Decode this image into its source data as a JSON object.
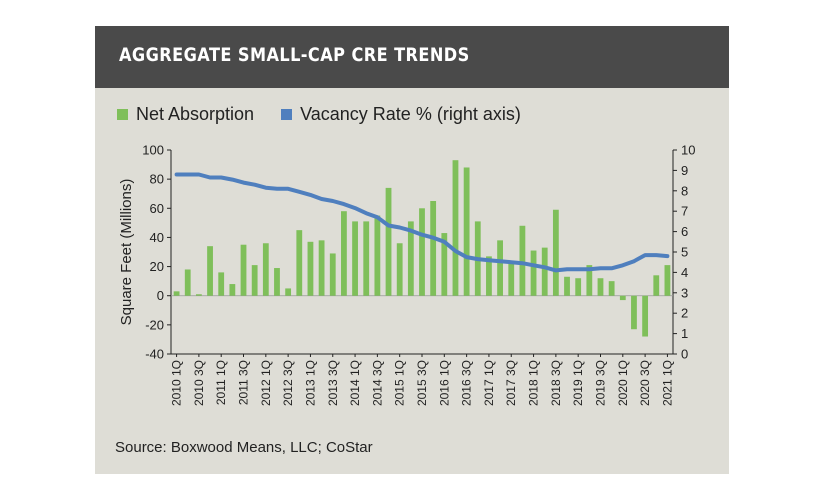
{
  "colors": {
    "header_bg": "#4a4a4a",
    "panel_bg": "#deddd6",
    "bar": "#7fbf5a",
    "line": "#4f7fbe"
  },
  "header": {
    "title": "AGGREGATE SMALL-CAP CRE TRENDS"
  },
  "source": "Source: Boxwood Means, LLC; CoStar",
  "chart_data": {
    "type": "bar",
    "title": "AGGREGATE SMALL-CAP CRE TRENDS",
    "ylabel": "Square Feet (Millions)",
    "ylim": [
      -40,
      100
    ],
    "yticks": [
      -40,
      -20,
      0,
      20,
      40,
      60,
      80,
      100
    ],
    "y2lim": [
      0,
      10
    ],
    "y2ticks": [
      0,
      1,
      2,
      3,
      4,
      5,
      6,
      7,
      8,
      9,
      10
    ],
    "grid": false,
    "legend_position": "top-left",
    "tick_labels": [
      "2010 1Q",
      "2010 3Q",
      "2011 1Q",
      "2011 3Q",
      "2012 1Q",
      "2012 3Q",
      "2013 1Q",
      "2013 3Q",
      "2014 1Q",
      "2014 3Q",
      "2015 1Q",
      "2015 3Q",
      "2016 1Q",
      "2016 3Q",
      "2017 1Q",
      "2017 3Q",
      "2018 1Q",
      "2018 3Q",
      "2019 1Q",
      "2019 3Q",
      "2020 1Q",
      "2020 3Q",
      "2021 1Q"
    ],
    "series": [
      {
        "name": "Net Absorption",
        "axis": "left",
        "type": "bar",
        "values": [
          3,
          18,
          1,
          34,
          16,
          8,
          35,
          21,
          36,
          19,
          5,
          45,
          37,
          38,
          29,
          58,
          51,
          51,
          55,
          74,
          36,
          51,
          60,
          65,
          43,
          93,
          88,
          51,
          27,
          38,
          23,
          48,
          31,
          33,
          59,
          13,
          12,
          21,
          12,
          10,
          -3,
          -23,
          -28,
          14,
          21
        ]
      },
      {
        "name": "Vacancy Rate % (right axis)",
        "axis": "right",
        "type": "line",
        "values": [
          8.8,
          8.8,
          8.8,
          8.65,
          8.65,
          8.55,
          8.4,
          8.3,
          8.15,
          8.1,
          8.1,
          7.95,
          7.8,
          7.6,
          7.5,
          7.35,
          7.15,
          6.9,
          6.7,
          6.3,
          6.2,
          6.05,
          5.85,
          5.7,
          5.5,
          5.05,
          4.75,
          4.65,
          4.6,
          4.55,
          4.5,
          4.45,
          4.35,
          4.25,
          4.1,
          4.15,
          4.15,
          4.15,
          4.2,
          4.2,
          4.35,
          4.55,
          4.85,
          4.85,
          4.8
        ]
      }
    ]
  }
}
